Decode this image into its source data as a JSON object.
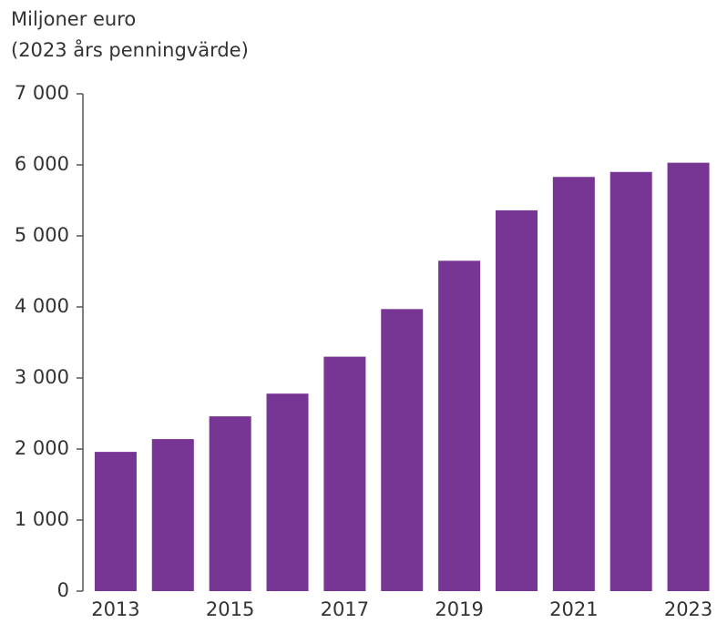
{
  "chart_data": {
    "type": "bar",
    "y_label_lines": [
      "Miljoner euro",
      "(2023 års penningvärde)"
    ],
    "categories": [
      "2013",
      null,
      "2015",
      null,
      "2017",
      null,
      "2019",
      null,
      "2021",
      null,
      "2023"
    ],
    "values": [
      1960,
      2140,
      2460,
      2780,
      3300,
      3970,
      4650,
      5360,
      5830,
      5900,
      6030
    ],
    "color": "#773594",
    "ylim": [
      0,
      7000
    ],
    "yticks": [
      0,
      {
        "value": 1000,
        "label": "1 000"
      },
      {
        "value": 2000,
        "label": "2 000"
      },
      {
        "value": 3000,
        "label": "3 000"
      },
      {
        "value": 4000,
        "label": "4 000"
      },
      {
        "value": 5000,
        "label": "5 000"
      },
      {
        "value": 6000,
        "label": "6 000"
      },
      {
        "value": 7000,
        "label": "7 000"
      }
    ],
    "grid": false
  }
}
